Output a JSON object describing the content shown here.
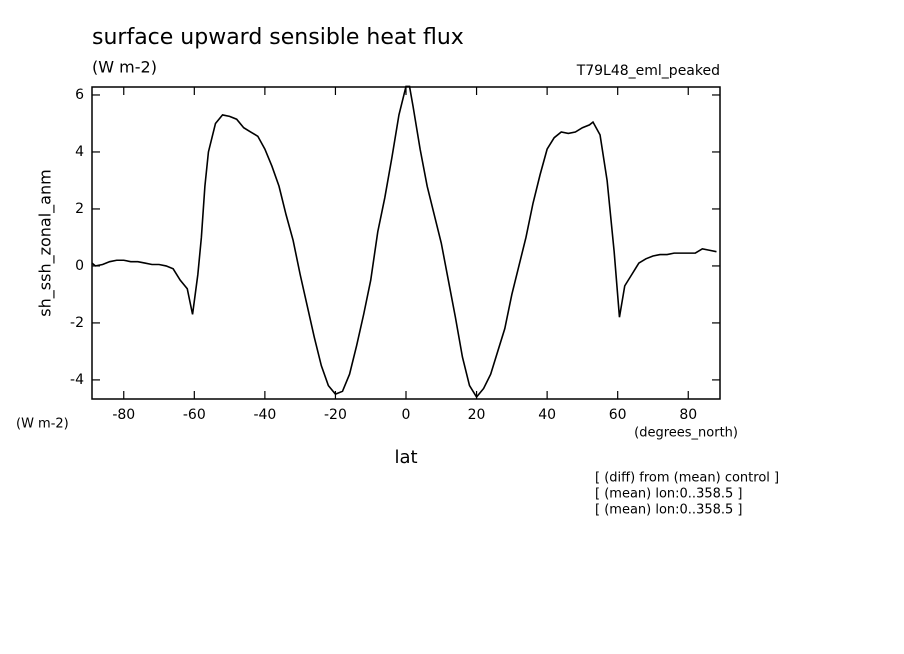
{
  "chart_data": {
    "type": "line",
    "title": "surface upward sensible heat flux",
    "subtitle": "(W m-2)",
    "run_label": "T79L48_eml_peaked",
    "ylabel": "sh_ssh_zonal_anm",
    "y_units": "(W m-2)",
    "x_units": "(degrees_north)",
    "xlabel": "lat",
    "notes": [
      "[ (diff) from (mean) control ]",
      "[ (mean) lon:0..358.5 ]",
      "[ (mean) lon:0..358.5 ]"
    ],
    "x": [
      -89,
      -88,
      -86,
      -84,
      -82,
      -80,
      -78,
      -76,
      -74,
      -72,
      -70,
      -68,
      -66,
      -64,
      -62,
      -60.5,
      -59,
      -58,
      -57,
      -56,
      -54,
      -52,
      -50,
      -48,
      -46,
      -44,
      -42,
      -40,
      -38,
      -36,
      -34,
      -32,
      -30,
      -28,
      -26,
      -24,
      -22,
      -20,
      -18,
      -16,
      -14,
      -12,
      -10,
      -8,
      -6,
      -4,
      -2,
      0,
      1,
      2,
      4,
      6,
      8,
      10,
      12,
      14,
      16,
      18,
      20,
      22,
      24,
      26,
      28,
      30,
      32,
      34,
      36,
      38,
      40,
      42,
      44,
      46,
      48,
      50,
      52,
      53,
      55,
      57,
      59,
      60.5,
      62,
      64,
      66,
      68,
      70,
      72,
      74,
      76,
      78,
      80,
      82,
      84,
      86,
      88
    ],
    "series": [
      {
        "color": "#000000",
        "values": [
          0.1,
          0.0,
          0.05,
          0.15,
          0.2,
          0.2,
          0.15,
          0.15,
          0.1,
          0.05,
          0.05,
          0.0,
          -0.1,
          -0.5,
          -0.8,
          -1.7,
          -0.3,
          1.0,
          2.8,
          4.0,
          5.0,
          5.3,
          5.25,
          5.15,
          4.85,
          4.7,
          4.55,
          4.1,
          3.5,
          2.8,
          1.8,
          0.9,
          -0.3,
          -1.4,
          -2.5,
          -3.5,
          -4.2,
          -4.5,
          -4.4,
          -3.8,
          -2.8,
          -1.7,
          -0.5,
          1.2,
          2.4,
          3.8,
          5.3,
          6.3,
          6.3,
          5.6,
          4.1,
          2.8,
          1.8,
          0.8,
          -0.5,
          -1.8,
          -3.2,
          -4.2,
          -4.6,
          -4.3,
          -3.8,
          -3.0,
          -2.2,
          -1.0,
          0.0,
          1.0,
          2.2,
          3.2,
          4.1,
          4.5,
          4.7,
          4.65,
          4.7,
          4.85,
          4.95,
          5.05,
          4.6,
          3.0,
          0.5,
          -1.8,
          -0.7,
          -0.3,
          0.1,
          0.25,
          0.35,
          0.4,
          0.4,
          0.45,
          0.45,
          0.45,
          0.45,
          0.6,
          0.55,
          0.5
        ]
      }
    ],
    "xlim": [
      -89,
      89
    ],
    "xticks": [
      -80,
      -60,
      -40,
      -20,
      0,
      20,
      40,
      60,
      80
    ],
    "ylim": [
      -4.67,
      6.28
    ],
    "yticks": [
      -4,
      -2,
      0,
      2,
      4,
      6
    ]
  }
}
